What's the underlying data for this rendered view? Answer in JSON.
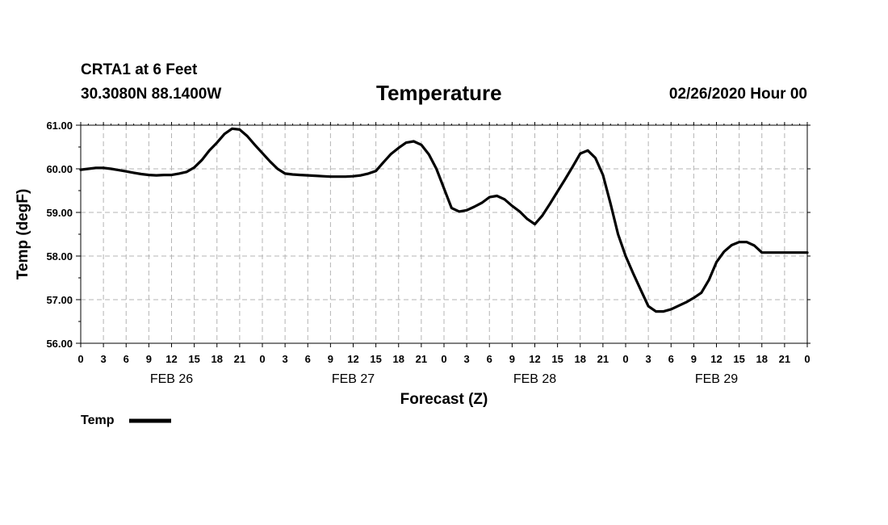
{
  "header": {
    "station": "CRTA1 at 6 Feet",
    "coords": "30.3080N 88.1400W",
    "title": "Temperature",
    "issued": "02/26/2020 Hour 00"
  },
  "chart_data": {
    "type": "line",
    "title": "Temperature",
    "xlabel": "Forecast (Z)",
    "ylabel": "Temp (degF)",
    "ylim": [
      56,
      61
    ],
    "yticks": [
      "56.00",
      "57.00",
      "58.00",
      "59.00",
      "60.00",
      "61.00"
    ],
    "xlim_hours": [
      0,
      96
    ],
    "xtick_labels": [
      "0",
      "3",
      "6",
      "9",
      "12",
      "15",
      "18",
      "21",
      "0",
      "3",
      "6",
      "9",
      "12",
      "15",
      "18",
      "21",
      "0",
      "3",
      "6",
      "9",
      "12",
      "15",
      "18",
      "21",
      "0",
      "3",
      "6",
      "9",
      "12",
      "15",
      "18",
      "21",
      "0"
    ],
    "day_labels": [
      "FEB 26",
      "FEB 27",
      "FEB 28",
      "FEB 29"
    ],
    "grid": true,
    "legend": "bottom-left",
    "series": [
      {
        "name": "Temp",
        "color": "#000000",
        "x_hours": [
          0,
          1,
          2,
          3,
          4,
          5,
          6,
          7,
          8,
          9,
          10,
          11,
          12,
          13,
          14,
          15,
          16,
          17,
          18,
          19,
          20,
          21,
          22,
          23,
          24,
          25,
          26,
          27,
          28,
          29,
          30,
          31,
          32,
          33,
          34,
          35,
          36,
          37,
          38,
          39,
          40,
          41,
          42,
          43,
          44,
          45,
          46,
          47,
          48,
          49,
          50,
          51,
          52,
          53,
          54,
          55,
          56,
          57,
          58,
          59,
          60,
          61,
          62,
          63,
          64,
          65,
          66,
          67,
          68,
          69,
          70,
          71,
          72,
          73,
          74,
          75,
          76,
          77,
          78,
          79,
          80,
          81,
          82,
          83,
          84,
          85,
          86,
          87,
          88,
          89,
          90,
          91,
          92,
          93,
          94,
          95,
          96
        ],
        "values": [
          59.98,
          60.0,
          60.02,
          60.02,
          60.0,
          59.97,
          59.94,
          59.91,
          59.88,
          59.86,
          59.85,
          59.86,
          59.86,
          59.89,
          59.93,
          60.03,
          60.2,
          60.42,
          60.6,
          60.8,
          60.92,
          60.9,
          60.75,
          60.55,
          60.36,
          60.17,
          60.0,
          59.89,
          59.87,
          59.86,
          59.85,
          59.84,
          59.83,
          59.82,
          59.82,
          59.82,
          59.83,
          59.85,
          59.89,
          59.95,
          60.15,
          60.34,
          60.48,
          60.6,
          60.63,
          60.55,
          60.33,
          60.0,
          59.55,
          59.1,
          59.02,
          59.05,
          59.13,
          59.22,
          59.35,
          59.38,
          59.3,
          59.15,
          59.02,
          58.85,
          58.73,
          58.93,
          59.2,
          59.48,
          59.76,
          60.05,
          60.35,
          60.42,
          60.25,
          59.86,
          59.2,
          58.5,
          58.0,
          57.6,
          57.22,
          56.85,
          56.73,
          56.73,
          56.78,
          56.86,
          56.94,
          57.04,
          57.16,
          57.45,
          57.86,
          58.1,
          58.25,
          58.32,
          58.32,
          58.24,
          58.08,
          58.08,
          58.08,
          58.08,
          58.08,
          58.08,
          58.08
        ]
      }
    ]
  },
  "legend": {
    "label": "Temp"
  }
}
